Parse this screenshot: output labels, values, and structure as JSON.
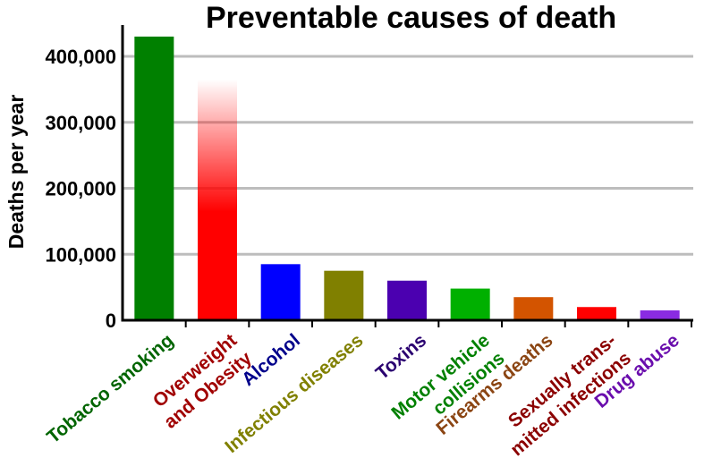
{
  "chart_data": {
    "type": "bar",
    "title": "Preventable causes of death",
    "ylabel": "Deaths per year",
    "xlabel": "",
    "ylim": [
      0,
      400000
    ],
    "yticks": [
      {
        "value": 0,
        "label": "0"
      },
      {
        "value": 100000,
        "label": "100,000"
      },
      {
        "value": 200000,
        "label": "200,000"
      },
      {
        "value": 300000,
        "label": "300,000"
      },
      {
        "value": 400000,
        "label": "400,000"
      }
    ],
    "grid": true,
    "categories": [
      {
        "label_lines": [
          "Tobacco smoking"
        ],
        "value": 430000,
        "color": "#008000",
        "label_color": "#006400"
      },
      {
        "label_lines": [
          "Overweight",
          "and Obesity"
        ],
        "value": 365000,
        "color": "#ff0000",
        "label_color": "#a00000",
        "gradient_fade": true
      },
      {
        "label_lines": [
          "Alcohol"
        ],
        "value": 85000,
        "color": "#0000ff",
        "label_color": "#00008b"
      },
      {
        "label_lines": [
          "Infectious diseases"
        ],
        "value": 75000,
        "color": "#808000",
        "label_color": "#808000"
      },
      {
        "label_lines": [
          "Toxins"
        ],
        "value": 60000,
        "color": "#4b00b0",
        "label_color": "#2a0070"
      },
      {
        "label_lines": [
          "Motor vehicle",
          "collisions"
        ],
        "value": 48000,
        "color": "#00b000",
        "label_color": "#008000"
      },
      {
        "label_lines": [
          "Firearms deaths"
        ],
        "value": 35000,
        "color": "#d35400",
        "label_color": "#8b4513"
      },
      {
        "label_lines": [
          "Sexually trans-",
          "mitted infections"
        ],
        "value": 20000,
        "color": "#ff0000",
        "label_color": "#8b0000"
      },
      {
        "label_lines": [
          "Drug abuse"
        ],
        "value": 15000,
        "color": "#8a2be2",
        "label_color": "#6a0dad"
      }
    ]
  }
}
